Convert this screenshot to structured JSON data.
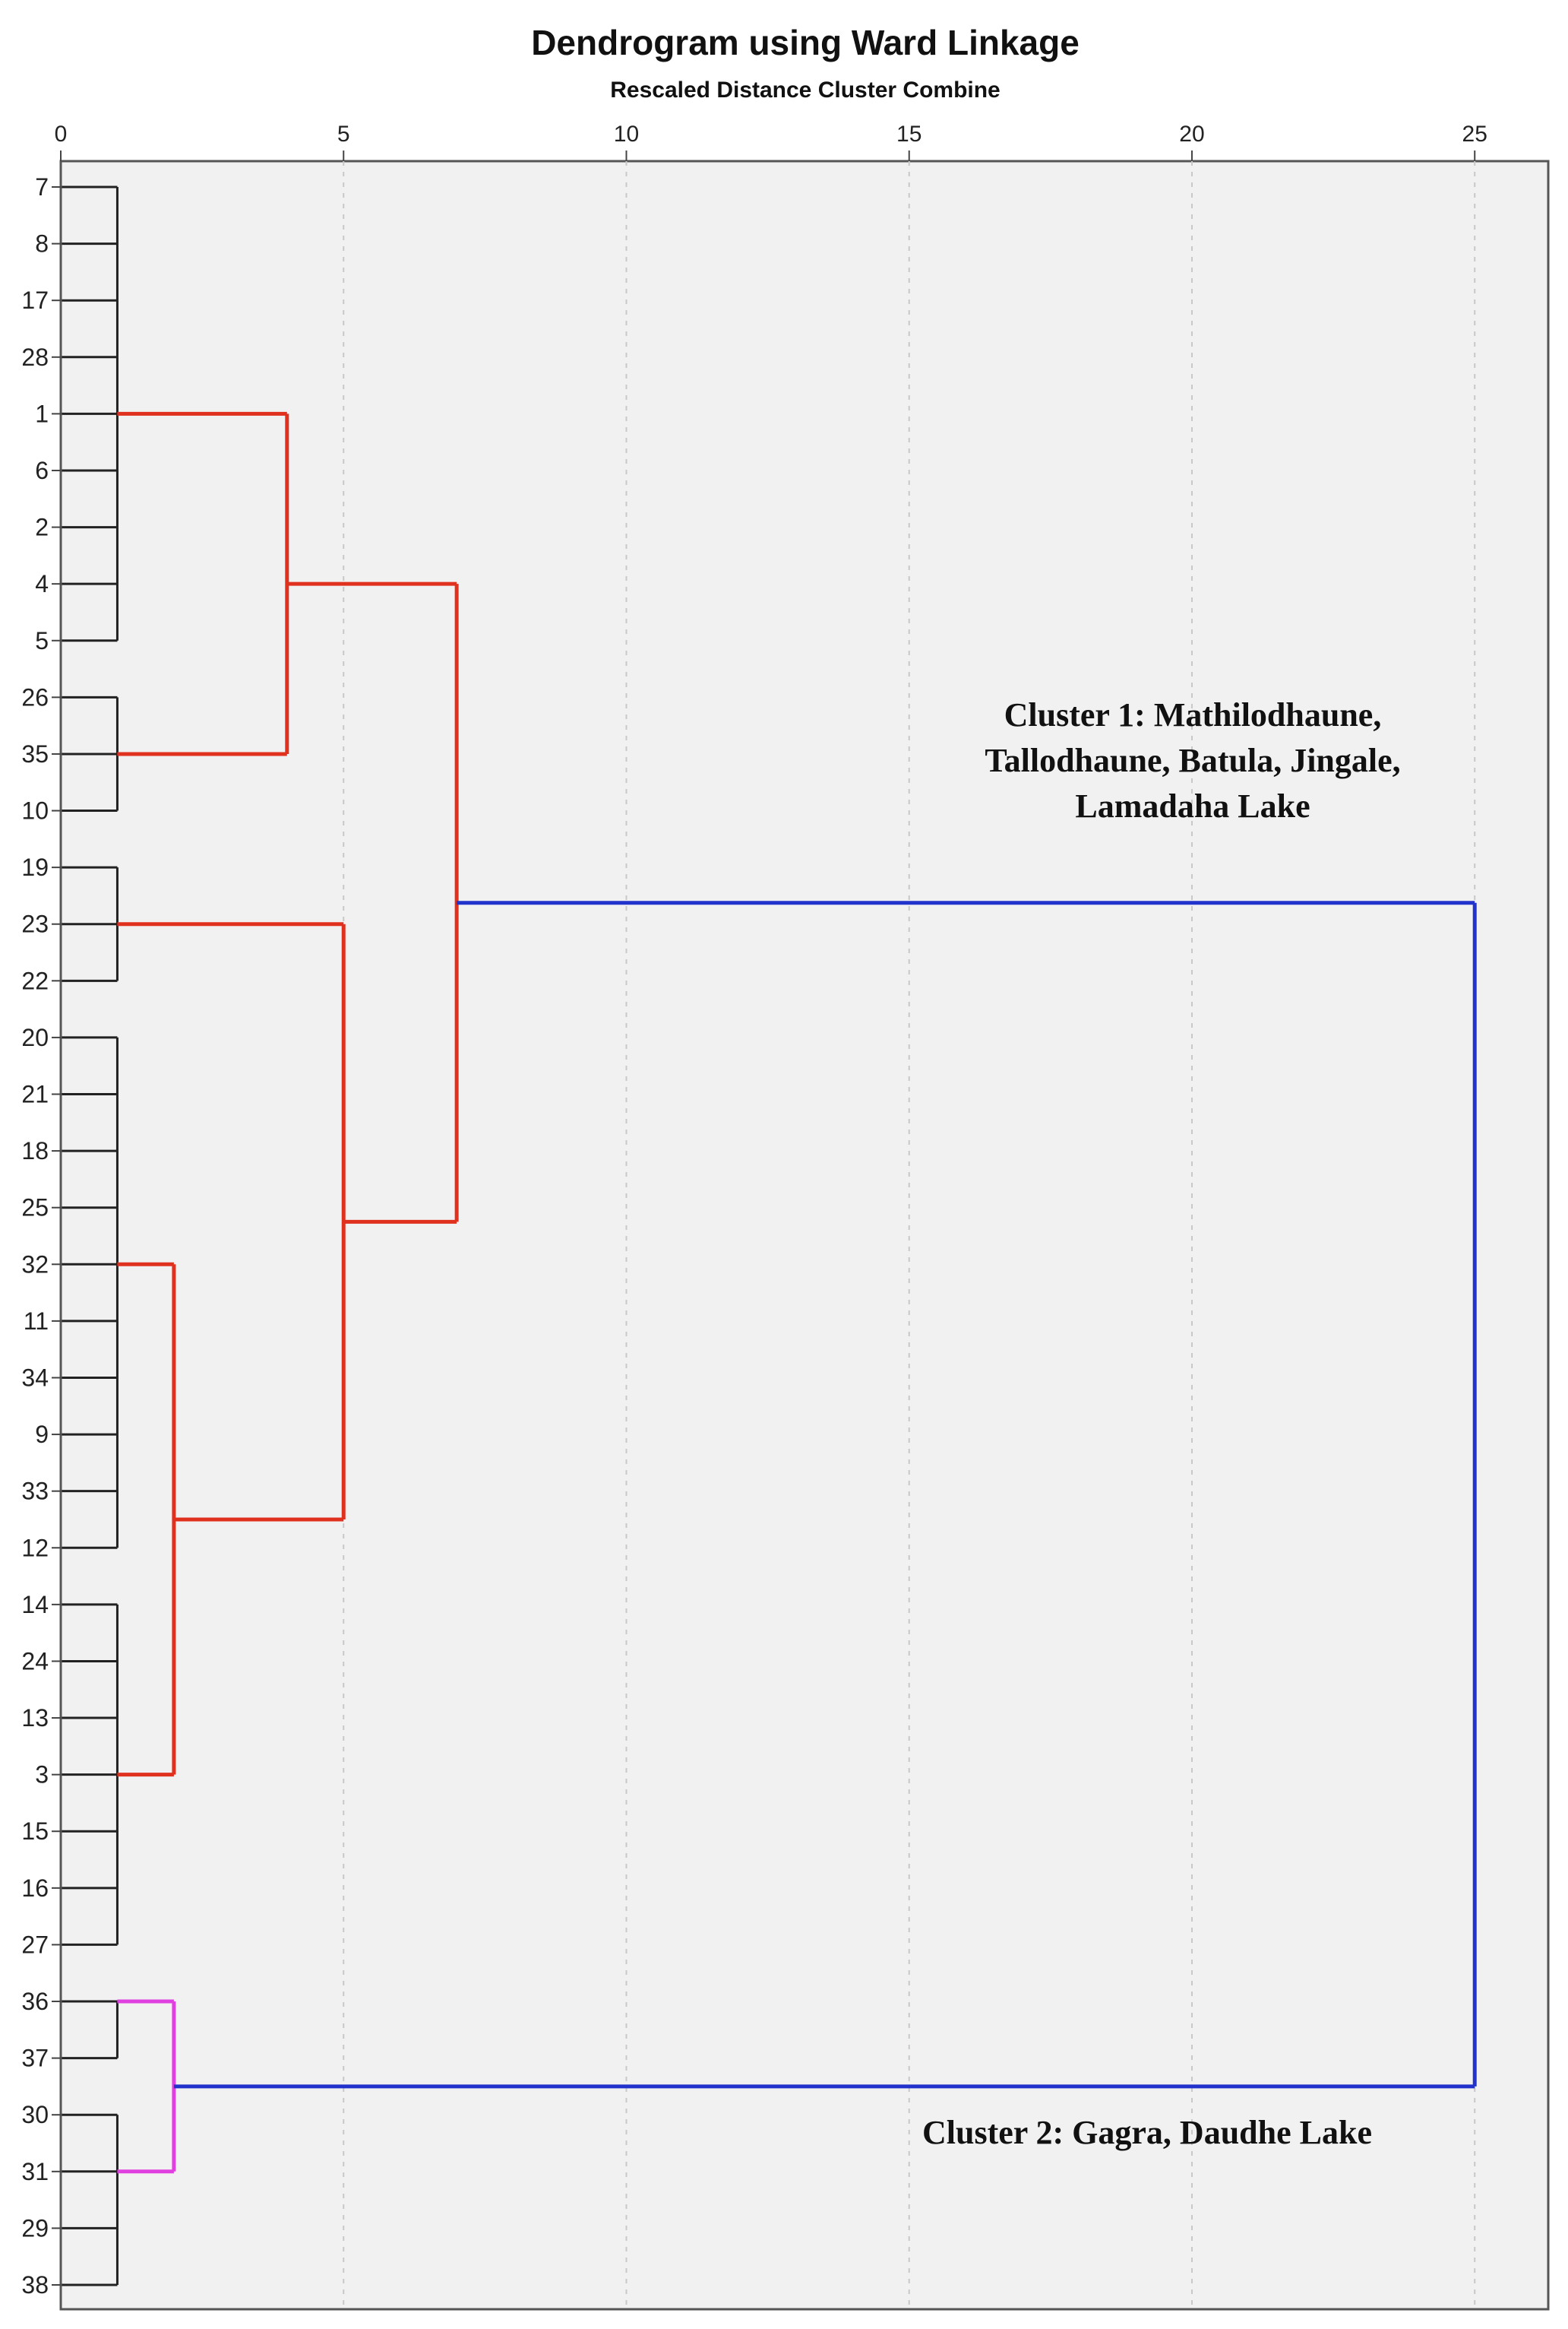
{
  "chart_data": {
    "type": "dendrogram",
    "title": "Dendrogram using Ward Linkage",
    "xlabel": "Rescaled Distance Cluster Combine",
    "xlim": [
      0,
      26.3
    ],
    "xticks": [
      "0",
      "5",
      "10",
      "15",
      "20",
      "25"
    ],
    "grid": true,
    "colors": {
      "black": "#222222",
      "red": "#e0301e",
      "blue": "#2233cc",
      "magenta": "#e040e0"
    },
    "leaves": [
      "7",
      "8",
      "17",
      "28",
      "1",
      "6",
      "2",
      "4",
      "5",
      "26",
      "35",
      "10",
      "19",
      "23",
      "22",
      "20",
      "21",
      "18",
      "25",
      "32",
      "11",
      "34",
      "9",
      "33",
      "12",
      "14",
      "24",
      "13",
      "3",
      "15",
      "16",
      "27",
      "36",
      "37",
      "30",
      "31",
      "29",
      "38"
    ],
    "merges": [
      {
        "id": "A",
        "children": [
          "7",
          "8",
          "17",
          "28",
          "1",
          "6",
          "2",
          "4",
          "5"
        ],
        "height": 1.0,
        "color": "black"
      },
      {
        "id": "B",
        "children": [
          "26",
          "35",
          "10"
        ],
        "height": 1.0,
        "color": "black"
      },
      {
        "id": "C",
        "children": [
          "19",
          "23",
          "22"
        ],
        "height": 1.0,
        "color": "black"
      },
      {
        "id": "D",
        "children": [
          "20",
          "21",
          "18",
          "25",
          "32",
          "11",
          "34",
          "9",
          "33",
          "12"
        ],
        "height": 1.0,
        "color": "black"
      },
      {
        "id": "E",
        "children": [
          "14",
          "24",
          "13",
          "3",
          "15",
          "16",
          "27"
        ],
        "height": 1.0,
        "color": "black"
      },
      {
        "id": "F",
        "children": [
          "36",
          "37"
        ],
        "height": 1.0,
        "color": "black"
      },
      {
        "id": "G",
        "children": [
          "30",
          "31",
          "29",
          "38"
        ],
        "height": 1.0,
        "color": "black"
      },
      {
        "id": "H",
        "children": [
          "A",
          "B"
        ],
        "height": 4.0,
        "color": "red"
      },
      {
        "id": "I",
        "children": [
          "D",
          "E"
        ],
        "height": 2.0,
        "color": "red"
      },
      {
        "id": "J",
        "children": [
          "C",
          "I"
        ],
        "height": 5.0,
        "color": "red"
      },
      {
        "id": "K",
        "children": [
          "H",
          "J"
        ],
        "height": 7.0,
        "color": "red"
      },
      {
        "id": "L",
        "children": [
          "F",
          "G"
        ],
        "height": 2.0,
        "color": "magenta"
      },
      {
        "id": "M",
        "children": [
          "K",
          "L"
        ],
        "height": 25.0,
        "color": "blue"
      }
    ],
    "annotations": [
      {
        "lines": [
          "Cluster 1: Mathilodhaune,",
          "Tallodhaune, Batula, Jingale,",
          "Lamadaha Lake"
        ]
      },
      {
        "lines": [
          "Cluster 2: Gagra, Daudhe Lake"
        ]
      }
    ]
  }
}
